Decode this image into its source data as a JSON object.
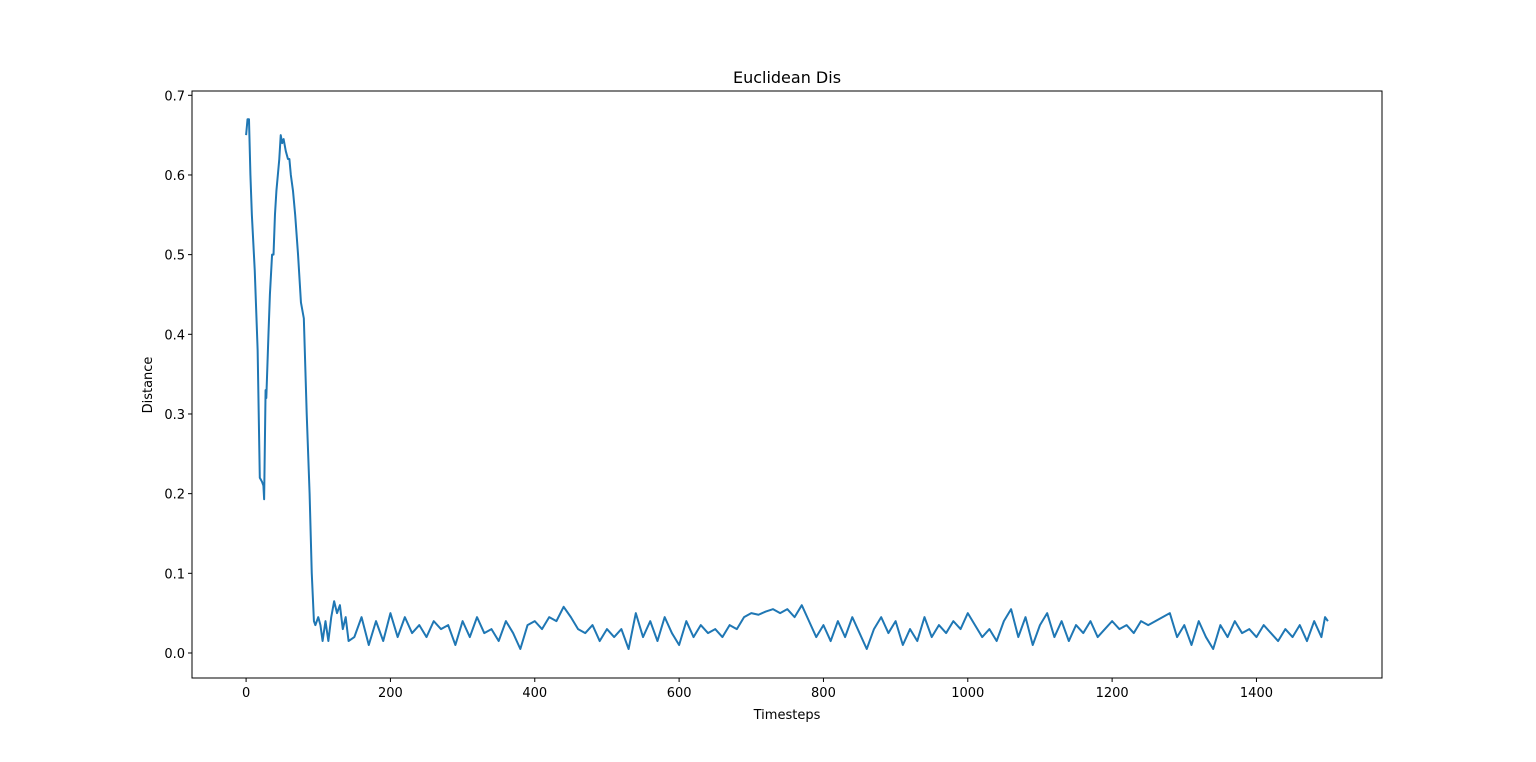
{
  "chart_data": {
    "type": "line",
    "title": "Euclidean Dis",
    "xlabel": "Timesteps",
    "ylabel": "Distance",
    "color": "#1f77b4",
    "x": [
      0,
      2,
      4,
      6,
      8,
      12,
      16,
      19,
      22,
      24,
      25,
      27,
      28,
      31,
      33,
      36,
      38,
      40,
      42,
      44,
      46,
      48,
      50,
      52,
      55,
      58,
      60,
      62,
      65,
      68,
      72,
      76,
      80,
      84,
      88,
      91,
      94,
      96,
      100,
      103,
      106,
      110,
      114,
      118,
      122,
      126,
      130,
      134,
      138,
      142,
      150,
      160,
      170,
      180,
      190,
      200,
      210,
      220,
      230,
      240,
      250,
      260,
      270,
      280,
      290,
      300,
      310,
      320,
      330,
      340,
      350,
      360,
      370,
      380,
      390,
      400,
      410,
      420,
      430,
      440,
      450,
      460,
      470,
      480,
      490,
      500,
      510,
      520,
      530,
      540,
      550,
      560,
      570,
      580,
      590,
      600,
      610,
      620,
      630,
      640,
      650,
      660,
      670,
      680,
      690,
      700,
      710,
      720,
      730,
      740,
      750,
      760,
      770,
      780,
      790,
      800,
      810,
      820,
      830,
      840,
      850,
      860,
      870,
      880,
      890,
      900,
      910,
      920,
      930,
      940,
      950,
      960,
      970,
      980,
      990,
      1000,
      1010,
      1020,
      1030,
      1040,
      1050,
      1060,
      1070,
      1080,
      1090,
      1100,
      1110,
      1120,
      1130,
      1140,
      1150,
      1160,
      1170,
      1180,
      1190,
      1200,
      1210,
      1220,
      1230,
      1240,
      1250,
      1260,
      1270,
      1280,
      1290,
      1300,
      1310,
      1320,
      1330,
      1340,
      1350,
      1360,
      1370,
      1380,
      1390,
      1400,
      1410,
      1420,
      1430,
      1440,
      1450,
      1460,
      1470,
      1480,
      1490,
      1495,
      1499
    ],
    "values": [
      0.65,
      0.67,
      0.67,
      0.6,
      0.55,
      0.48,
      0.38,
      0.22,
      0.215,
      0.21,
      0.193,
      0.33,
      0.32,
      0.4,
      0.45,
      0.5,
      0.5,
      0.55,
      0.58,
      0.6,
      0.62,
      0.65,
      0.64,
      0.645,
      0.63,
      0.62,
      0.62,
      0.6,
      0.58,
      0.55,
      0.5,
      0.44,
      0.42,
      0.3,
      0.2,
      0.1,
      0.04,
      0.035,
      0.045,
      0.035,
      0.015,
      0.04,
      0.015,
      0.045,
      0.065,
      0.05,
      0.06,
      0.03,
      0.045,
      0.015,
      0.02,
      0.045,
      0.01,
      0.04,
      0.015,
      0.05,
      0.02,
      0.045,
      0.025,
      0.035,
      0.02,
      0.04,
      0.03,
      0.035,
      0.01,
      0.04,
      0.02,
      0.045,
      0.025,
      0.03,
      0.015,
      0.04,
      0.025,
      0.005,
      0.035,
      0.04,
      0.03,
      0.045,
      0.04,
      0.058,
      0.045,
      0.03,
      0.025,
      0.035,
      0.015,
      0.03,
      0.02,
      0.03,
      0.005,
      0.05,
      0.02,
      0.04,
      0.015,
      0.045,
      0.025,
      0.01,
      0.04,
      0.02,
      0.035,
      0.025,
      0.03,
      0.02,
      0.035,
      0.03,
      0.045,
      0.05,
      0.048,
      0.052,
      0.055,
      0.05,
      0.055,
      0.045,
      0.06,
      0.04,
      0.02,
      0.035,
      0.015,
      0.04,
      0.02,
      0.045,
      0.025,
      0.005,
      0.03,
      0.045,
      0.025,
      0.04,
      0.01,
      0.03,
      0.015,
      0.045,
      0.02,
      0.035,
      0.025,
      0.04,
      0.03,
      0.05,
      0.035,
      0.02,
      0.03,
      0.015,
      0.04,
      0.055,
      0.02,
      0.045,
      0.01,
      0.035,
      0.05,
      0.02,
      0.04,
      0.015,
      0.035,
      0.025,
      0.04,
      0.02,
      0.03,
      0.04,
      0.03,
      0.035,
      0.025,
      0.04,
      0.035,
      0.04,
      0.045,
      0.05,
      0.02,
      0.035,
      0.01,
      0.04,
      0.02,
      0.005,
      0.035,
      0.02,
      0.04,
      0.025,
      0.03,
      0.02,
      0.035,
      0.025,
      0.015,
      0.03,
      0.02,
      0.035,
      0.015,
      0.04,
      0.02,
      0.045,
      0.04
    ],
    "xlim": [
      -74.95,
      1573.95
    ],
    "xticks": [
      0,
      200,
      400,
      600,
      800,
      1000,
      1200,
      1400
    ],
    "ylim": [
      -0.0314,
      0.7054
    ],
    "yticks": [
      {
        "value": 0,
        "label": "0.0"
      },
      0.1,
      0.2,
      0.3,
      0.4,
      0.5,
      0.6,
      0.7
    ]
  }
}
